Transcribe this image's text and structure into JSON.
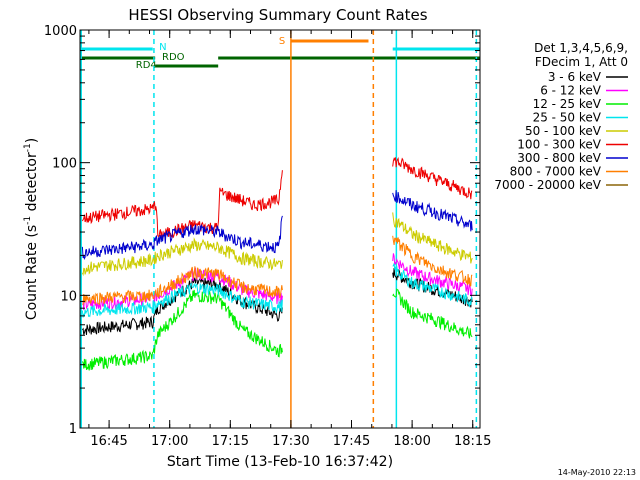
{
  "chart_data": {
    "type": "line",
    "title": "HESSI Observing Summary Count Rates",
    "xlabel": "Start Time (13-Feb-10 16:37:42)",
    "ylabel_main": "Count Rate (s",
    "ylabel_sup1": "-1",
    "ylabel_mid": " detector",
    "ylabel_sup2": "-1",
    "ylabel_end": ")",
    "footer": "14-May-2010 22:13",
    "yscale": "log",
    "ylim": [
      1,
      1000
    ],
    "xlim_minutes": [
      16.63,
      18.28
    ],
    "x_ticks": [
      {
        "t": 16.75,
        "label": "16:45"
      },
      {
        "t": 17.0,
        "label": "17:00"
      },
      {
        "t": 17.25,
        "label": "17:15"
      },
      {
        "t": 17.5,
        "label": "17:30"
      },
      {
        "t": 17.75,
        "label": "17:45"
      },
      {
        "t": 18.0,
        "label": "18:00"
      },
      {
        "t": 18.25,
        "label": "18:15"
      }
    ],
    "y_ticks": [
      {
        "v": 1,
        "label": "1"
      },
      {
        "v": 10,
        "label": "10"
      },
      {
        "v": 100,
        "label": "100"
      },
      {
        "v": 1000,
        "label": "1000"
      }
    ],
    "legend": {
      "header1": "Det 1,3,4,5,6,9,",
      "header2": "FDecim 1, Att 0",
      "placement": "right"
    },
    "flags": {
      "N_label": "N",
      "S_label": "S",
      "RDO_label": "RDO",
      "RD4_label": "RD4",
      "N_color": "#00e5ee",
      "S_color": "#ff7f00",
      "RD_color": "#006400",
      "N_segments": [
        [
          16.63,
          16.93
        ],
        [
          17.92,
          18.28
        ]
      ],
      "S_segments": [
        [
          17.5,
          17.82
        ]
      ],
      "RD4_segments": [
        [
          16.63,
          16.94
        ],
        [
          16.94,
          17.2
        ],
        [
          17.2,
          18.28
        ]
      ],
      "night_lines": [
        16.635,
        16.935,
        17.935,
        18.265
      ],
      "saa_lines": [
        17.5,
        17.84
      ]
    },
    "gaps": [
      [
        17.46,
        17.91
      ]
    ],
    "series": [
      {
        "name": "3 - 6 keV",
        "color": "#000000",
        "segA": [
          [
            16.64,
            5.5
          ],
          [
            16.93,
            6.3
          ],
          [
            16.95,
            8
          ],
          [
            17.1,
            12.5
          ],
          [
            17.2,
            12
          ],
          [
            17.3,
            9
          ],
          [
            17.45,
            7
          ],
          [
            17.465,
            7.5
          ]
        ],
        "segB": [
          [
            17.92,
            15
          ],
          [
            18.0,
            12.5
          ],
          [
            18.1,
            11
          ],
          [
            18.25,
            9
          ]
        ]
      },
      {
        "name": "6 - 12 keV",
        "color": "#ff00ff",
        "segA": [
          [
            16.64,
            8.5
          ],
          [
            16.93,
            9.5
          ],
          [
            16.95,
            10
          ],
          [
            17.1,
            14.5
          ],
          [
            17.2,
            14
          ],
          [
            17.3,
            11
          ],
          [
            17.45,
            9.5
          ],
          [
            17.465,
            10
          ]
        ],
        "segB": [
          [
            17.92,
            19
          ],
          [
            18.0,
            15
          ],
          [
            18.1,
            13
          ],
          [
            18.25,
            11
          ]
        ]
      },
      {
        "name": "12 - 25 keV",
        "color": "#00ee00",
        "segA": [
          [
            16.64,
            3
          ],
          [
            16.93,
            3.5
          ],
          [
            16.95,
            5
          ],
          [
            17.1,
            10
          ],
          [
            17.2,
            9.5
          ],
          [
            17.3,
            5.5
          ],
          [
            17.45,
            3.8
          ],
          [
            17.465,
            4
          ]
        ],
        "segB": [
          [
            17.92,
            11
          ],
          [
            18.0,
            7.5
          ],
          [
            18.1,
            6.5
          ],
          [
            18.25,
            5
          ]
        ]
      },
      {
        "name": "25 - 50 keV",
        "color": "#00e5ee",
        "segA": [
          [
            16.64,
            7.5
          ],
          [
            16.93,
            8.2
          ],
          [
            16.95,
            8.8
          ],
          [
            17.1,
            11.5
          ],
          [
            17.2,
            11
          ],
          [
            17.3,
            9
          ],
          [
            17.45,
            8.2
          ],
          [
            17.465,
            8.5
          ]
        ],
        "segB": [
          [
            17.92,
            16
          ],
          [
            18.0,
            12.5
          ],
          [
            18.1,
            11
          ],
          [
            18.25,
            9
          ]
        ]
      },
      {
        "name": "50 - 100 keV",
        "color": "#cccc00",
        "segA": [
          [
            16.64,
            16
          ],
          [
            16.93,
            18.5
          ],
          [
            16.95,
            20
          ],
          [
            17.1,
            24
          ],
          [
            17.2,
            23
          ],
          [
            17.3,
            19
          ],
          [
            17.45,
            17
          ],
          [
            17.465,
            18
          ]
        ],
        "segB": [
          [
            17.92,
            38
          ],
          [
            18.0,
            29
          ],
          [
            18.1,
            24
          ],
          [
            18.25,
            19
          ]
        ]
      },
      {
        "name": "100 - 300 keV",
        "color": "#ee0000",
        "segA": [
          [
            16.64,
            38
          ],
          [
            16.93,
            45
          ],
          [
            16.945,
            50
          ],
          [
            16.95,
            28
          ],
          [
            17.1,
            34
          ],
          [
            17.2,
            32
          ],
          [
            17.205,
            60
          ],
          [
            17.35,
            48
          ],
          [
            17.45,
            52
          ],
          [
            17.465,
            95
          ]
        ],
        "segB": [
          [
            17.92,
            105
          ],
          [
            18.0,
            90
          ],
          [
            18.1,
            75
          ],
          [
            18.25,
            58
          ]
        ]
      },
      {
        "name": "300 - 800 keV",
        "color": "#0000cd",
        "segA": [
          [
            16.64,
            21
          ],
          [
            16.93,
            24
          ],
          [
            16.95,
            26
          ],
          [
            17.1,
            32
          ],
          [
            17.2,
            30
          ],
          [
            17.3,
            25
          ],
          [
            17.45,
            23
          ],
          [
            17.465,
            40
          ]
        ],
        "segB": [
          [
            17.92,
            58
          ],
          [
            18.0,
            48
          ],
          [
            18.1,
            42
          ],
          [
            18.25,
            33
          ]
        ]
      },
      {
        "name": "800 - 7000 keV",
        "color": "#ff7f00",
        "segA": [
          [
            16.64,
            9.5
          ],
          [
            16.93,
            10
          ],
          [
            16.95,
            10.5
          ],
          [
            17.1,
            15
          ],
          [
            17.2,
            14.5
          ],
          [
            17.3,
            11.5
          ],
          [
            17.45,
            10.5
          ],
          [
            17.465,
            11
          ]
        ],
        "segB": [
          [
            17.92,
            27
          ],
          [
            18.0,
            20
          ],
          [
            18.1,
            16
          ],
          [
            18.25,
            13
          ]
        ]
      },
      {
        "name": "7000 - 20000 keV",
        "color": "#8b6508",
        "segA": [],
        "segB": []
      }
    ]
  }
}
